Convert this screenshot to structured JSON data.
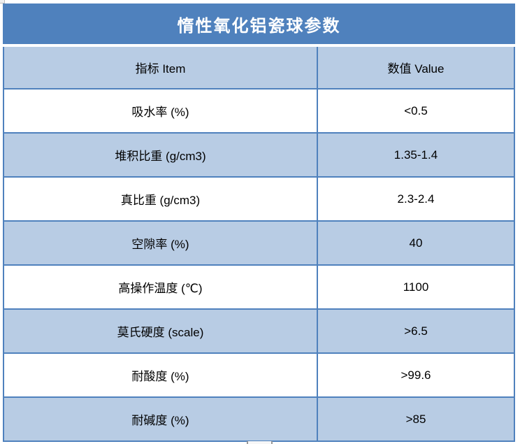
{
  "table": {
    "title": "惰性氧化铝瓷球参数",
    "columns": [
      {
        "label": "指标 Item"
      },
      {
        "label": "数值 Value"
      }
    ],
    "rows": [
      {
        "item": "吸水率 (%)",
        "value": "<0.5"
      },
      {
        "item": "堆积比重 (g/cm3)",
        "value": "1.35-1.4"
      },
      {
        "item": "真比重 (g/cm3)",
        "value": "2.3-2.4"
      },
      {
        "item": "空隙率 (%)",
        "value": "40"
      },
      {
        "item": "高操作温度 (℃)",
        "value": "1100"
      },
      {
        "item": "莫氏硬度 (scale)",
        "value": ">6.5"
      },
      {
        "item": "耐酸度 (%)",
        "value": ">99.6"
      },
      {
        "item": "耐碱度 (%)",
        "value": ">85"
      }
    ],
    "colors": {
      "title_bg": "#4F81BD",
      "band_bg": "#B8CCE4",
      "border": "#4F81BD",
      "title_text": "#FFFFFF",
      "cell_text": "#000000"
    }
  }
}
